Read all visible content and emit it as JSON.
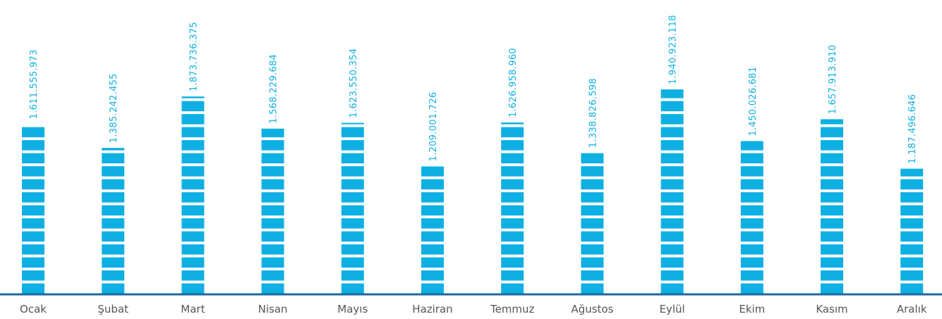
{
  "chart_data": {
    "type": "bar",
    "title": "",
    "xlabel": "",
    "ylabel": "",
    "categories": [
      "Ocak",
      "Şubat",
      "Mart",
      "Nisan",
      "Mayıs",
      "Haziran",
      "Temmuz",
      "Ağustos",
      "Eylül",
      "Ekim",
      "Kasım",
      "Aralık"
    ],
    "values": [
      1611555973,
      1385242455,
      1873736375,
      1568229684,
      1623550354,
      1209001726,
      1626958960,
      1338826598,
      1940923118,
      1450026681,
      1657913910,
      1187496646
    ],
    "value_labels": [
      "1.611.555.973",
      "1.385.242.455",
      "1.873.736.375",
      "1.568.229.684",
      "1.623.550.354",
      "1.209.001.726",
      "1.626.958.960",
      "1.338.826.598",
      "1.940.923.118",
      "1.450.026.681",
      "1.657.913.910",
      "1.187.496.646"
    ],
    "ylim": [
      0,
      2000000000
    ],
    "grid": false,
    "legend": "none"
  },
  "colors": {
    "bar": "#0EB0E3",
    "axis": "#1C6A9E",
    "value_label": "#0EB0E3",
    "category_label": "#555555"
  }
}
